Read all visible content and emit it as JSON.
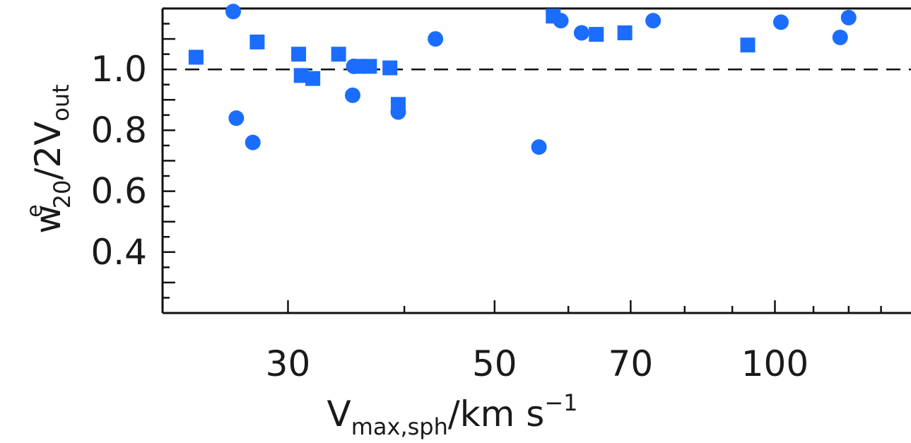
{
  "chart_data": {
    "type": "scatter",
    "title": "",
    "xlabel": {
      "base": "V",
      "sub": "max,sph",
      "rest": "/km  s",
      "sup": "−1"
    },
    "ylabel": {
      "base": "w",
      "sup": "e",
      "sub": "20",
      "mid": "/2V",
      "sub2": "out"
    },
    "xscale": "log",
    "xlim": [
      22,
      140
    ],
    "ylim": [
      0.2,
      1.2
    ],
    "xticks": [
      30,
      50,
      70,
      100
    ],
    "xtick_labels": [
      "30",
      "50",
      "70",
      "100"
    ],
    "yticks": [
      0.4,
      0.6,
      0.8,
      1.0
    ],
    "ytick_labels": [
      "0.4",
      "0.6",
      "0.8",
      "1.0"
    ],
    "reference_line": {
      "y": 1.0,
      "style": "dashed"
    },
    "marker_color": "#1a6dff",
    "series": [
      {
        "marker": "circle",
        "points": [
          {
            "x": 26.2,
            "y": 1.19
          },
          {
            "x": 26.4,
            "y": 0.84
          },
          {
            "x": 27.5,
            "y": 0.76
          },
          {
            "x": 35.2,
            "y": 0.915
          },
          {
            "x": 35.3,
            "y": 1.01
          },
          {
            "x": 39.4,
            "y": 0.86
          },
          {
            "x": 43.2,
            "y": 1.1
          },
          {
            "x": 55.8,
            "y": 0.745
          },
          {
            "x": 58.9,
            "y": 1.16
          },
          {
            "x": 62.0,
            "y": 1.12
          },
          {
            "x": 74.0,
            "y": 1.16
          },
          {
            "x": 101.5,
            "y": 1.155
          },
          {
            "x": 117.5,
            "y": 1.105
          },
          {
            "x": 120.0,
            "y": 1.17
          }
        ]
      },
      {
        "marker": "square",
        "points": [
          {
            "x": 23.9,
            "y": 1.04
          },
          {
            "x": 27.8,
            "y": 1.09
          },
          {
            "x": 30.8,
            "y": 1.05
          },
          {
            "x": 31.0,
            "y": 0.98
          },
          {
            "x": 31.9,
            "y": 0.97
          },
          {
            "x": 34.0,
            "y": 1.05
          },
          {
            "x": 35.8,
            "y": 1.01
          },
          {
            "x": 36.7,
            "y": 1.01
          },
          {
            "x": 38.6,
            "y": 1.005
          },
          {
            "x": 39.4,
            "y": 0.885
          },
          {
            "x": 57.8,
            "y": 1.175
          },
          {
            "x": 64.3,
            "y": 1.115
          },
          {
            "x": 69.0,
            "y": 1.12
          },
          {
            "x": 93.5,
            "y": 1.08
          }
        ]
      }
    ]
  }
}
